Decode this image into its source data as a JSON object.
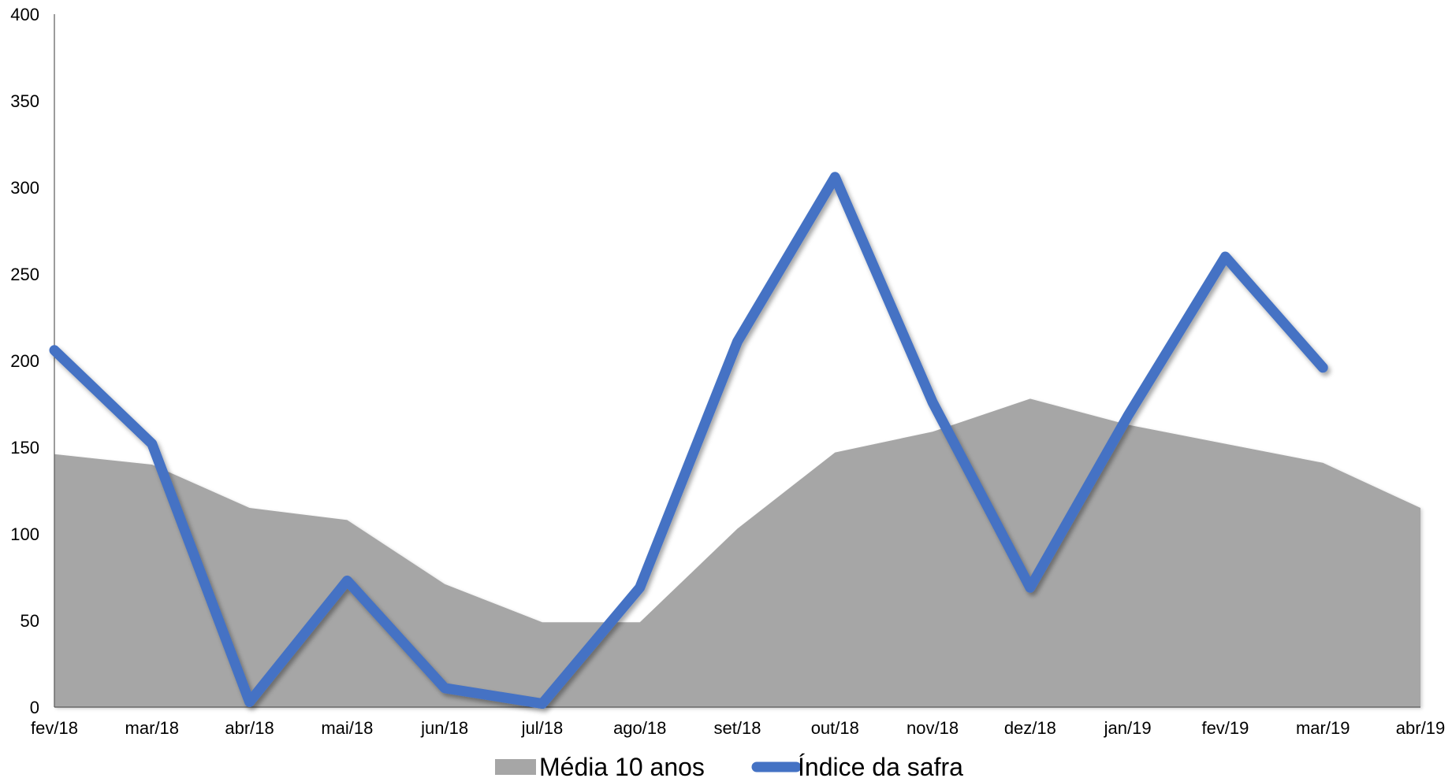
{
  "chart_data": {
    "type": "area+line",
    "categories": [
      "fev/18",
      "mar/18",
      "abr/18",
      "mai/18",
      "jun/18",
      "jul/18",
      "ago/18",
      "set/18",
      "out/18",
      "nov/18",
      "dez/18",
      "jan/19",
      "fev/19",
      "mar/19",
      "abr/19"
    ],
    "ylim": [
      0,
      400
    ],
    "yticks": [
      0,
      50,
      100,
      150,
      200,
      250,
      300,
      350,
      400
    ],
    "grid": false,
    "legend_position": "bottom",
    "series": [
      {
        "name": "Média 10 anos",
        "kind": "area",
        "color": "#a6a6a6",
        "values": [
          146,
          140,
          115,
          108,
          71,
          49,
          49,
          103,
          147,
          159,
          178,
          163,
          152,
          141,
          115
        ]
      },
      {
        "name": "Índice da safra",
        "kind": "line",
        "color": "#4472c4",
        "values": [
          206,
          152,
          3,
          73,
          11,
          2,
          69,
          211,
          306,
          176,
          69,
          168,
          260,
          196,
          null
        ]
      }
    ]
  }
}
